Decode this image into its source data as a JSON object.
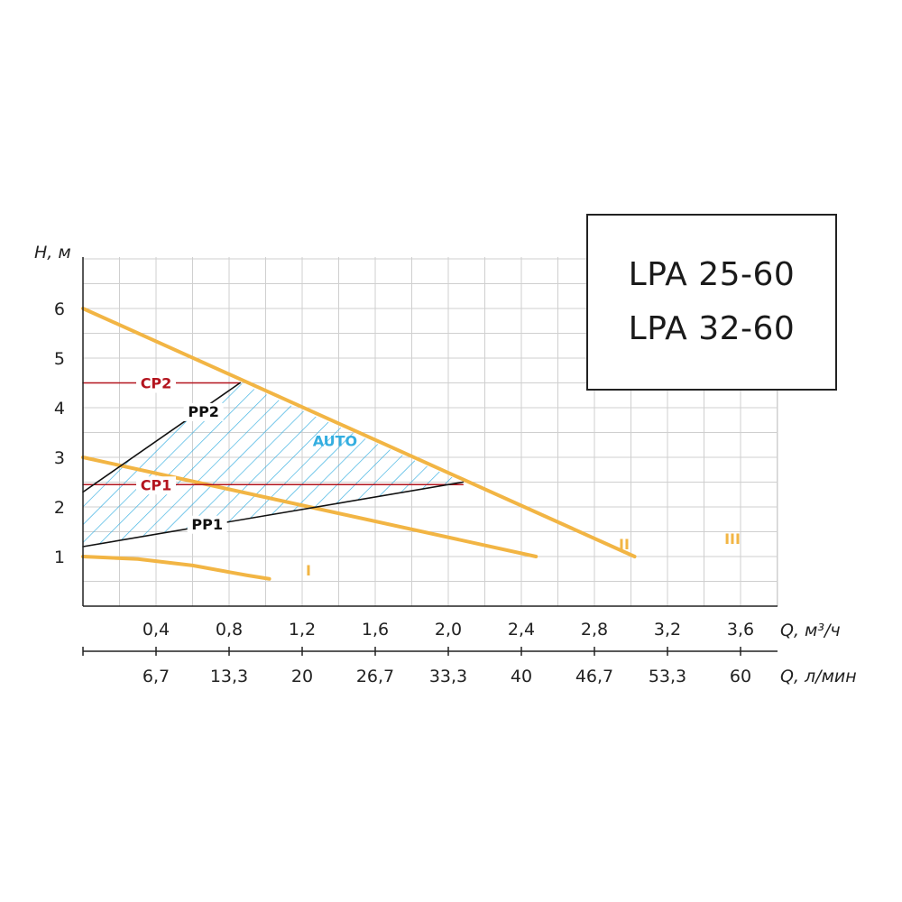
{
  "models": [
    "LPA 25-60",
    "LPA 32-60"
  ],
  "chart_data": {
    "type": "line",
    "ylabel": "H, м",
    "xlabel": "Q, м³/ч",
    "xlabel_secondary": "Q, л/мин",
    "ylim": [
      0,
      6.6
    ],
    "xlim": [
      0,
      3.2
    ],
    "y_ticks": [
      "1",
      "2",
      "3",
      "4",
      "5",
      "6"
    ],
    "y_tick_values": [
      1,
      2,
      3,
      4,
      5,
      6
    ],
    "x_ticks": [
      "0,4",
      "0,8",
      "1,2",
      "1,6",
      "2,0",
      "2,4",
      "2,8",
      "3,2",
      "3,6"
    ],
    "x_tick_values": [
      0.4,
      0.8,
      1.2,
      1.6,
      2.0,
      2.4,
      2.8,
      3.2,
      3.6
    ],
    "x_ticks_secondary": [
      "6,7",
      "13,3",
      "20",
      "26,7",
      "33,3",
      "40",
      "46,7",
      "53,3",
      "60"
    ],
    "grid": true,
    "series": [
      {
        "name": "I",
        "color": "#f2b544",
        "points": [
          [
            0,
            1.0
          ],
          [
            0.3,
            0.95
          ],
          [
            0.6,
            0.82
          ],
          [
            0.9,
            0.62
          ],
          [
            1.02,
            0.55
          ]
        ]
      },
      {
        "name": "II",
        "color": "#f2b544",
        "points": [
          [
            0,
            3.0
          ],
          [
            2.48,
            1.0
          ]
        ]
      },
      {
        "name": "III",
        "color": "#f2b544",
        "points": [
          [
            0,
            6.0
          ],
          [
            3.02,
            1.0
          ]
        ]
      },
      {
        "name": "CP2",
        "color": "#b3141e",
        "points": [
          [
            0,
            4.5
          ],
          [
            0.86,
            4.5
          ]
        ]
      },
      {
        "name": "CP1",
        "color": "#b3141e",
        "points": [
          [
            0,
            2.45
          ],
          [
            2.08,
            2.45
          ]
        ]
      },
      {
        "name": "PP2",
        "color": "#111111",
        "points": [
          [
            0,
            2.3
          ],
          [
            0.86,
            4.5
          ]
        ]
      },
      {
        "name": "PP1",
        "color": "#111111",
        "points": [
          [
            0,
            1.2
          ],
          [
            2.08,
            2.5
          ]
        ]
      }
    ],
    "regions": [
      {
        "name": "AUTO",
        "color": "#34aee0",
        "polygon": [
          [
            0,
            1.2
          ],
          [
            0,
            2.3
          ],
          [
            0.86,
            4.5
          ],
          [
            2.08,
            2.5
          ]
        ]
      }
    ]
  }
}
